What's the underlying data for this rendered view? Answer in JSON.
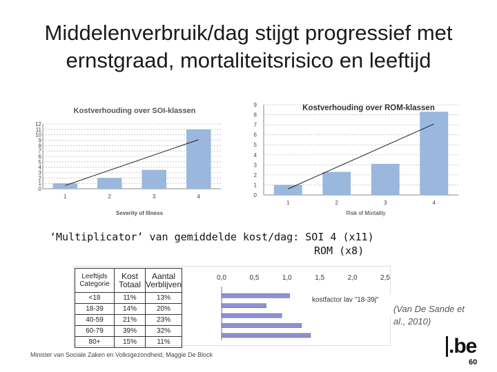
{
  "slide": {
    "title_line1": "Middelenverbruik/dag stijgt progressief met",
    "title_line2": "ernstgraad, mortaliteitsrisico en leeftijd",
    "multiplier_line1": "‘Multiplicator’  van gemiddelde kost/dag: SOI 4 (x11)",
    "multiplier_line2": "ROM (x8)",
    "citation_line1": "(Van De Sande et",
    "citation_line2": "al., 2010)",
    "footer": "Minister van Sociale Zaken en Volksgezondheid, Maggie De Block",
    "logo_text": ".be",
    "page_number": "60"
  },
  "age_table": {
    "headers": [
      [
        "Leeftijds",
        "Categorie"
      ],
      [
        "Kost",
        "Totaal"
      ],
      [
        "Aantal",
        "Verblijven"
      ]
    ],
    "rows": [
      [
        "<18",
        "11%",
        "13%"
      ],
      [
        "18-39",
        "14%",
        "20%"
      ],
      [
        "40-59",
        "21%",
        "23%"
      ],
      [
        "60-79",
        "39%",
        "32%"
      ],
      [
        "80+",
        "15%",
        "11%"
      ]
    ]
  },
  "chart_data": [
    {
      "type": "bar",
      "title": "Kostverhouding over SOI-klassen",
      "xlabel": "Severity of Illness",
      "ylabel": "",
      "categories": [
        "1",
        "2",
        "3",
        "4"
      ],
      "values": [
        1,
        2,
        3.5,
        11
      ],
      "trendline": true,
      "ylim": [
        0,
        12
      ],
      "yticks": [
        "0",
        "1",
        "2",
        "3",
        "4",
        "5",
        "6",
        "7",
        "8",
        "9",
        "10",
        "11",
        "12"
      ],
      "grid": true,
      "bar_color": "#9ab7dd"
    },
    {
      "type": "bar",
      "title": "Kostverhouding  over ROM-klassen",
      "xlabel": "Risk of Mortality",
      "ylabel": "",
      "categories": [
        "1",
        "2",
        "3",
        "4"
      ],
      "values": [
        1,
        2.3,
        3.1,
        8.3
      ],
      "trendline": true,
      "ylim": [
        0,
        9
      ],
      "yticks": [
        "0",
        "1",
        "2",
        "3",
        "4",
        "5",
        "6",
        "7",
        "8",
        "9"
      ],
      "grid": true,
      "bar_color": "#9ab7dd"
    },
    {
      "type": "bar",
      "orientation": "horizontal",
      "title": "",
      "xlim": [
        0,
        2.5
      ],
      "xticks": [
        "0,0",
        "0,5",
        "1,0",
        "1,5",
        "2,0",
        "2,5"
      ],
      "categories": [
        "<18",
        "18-39",
        "40-59",
        "60-79",
        "80+"
      ],
      "values": [
        1.04,
        0.68,
        0.92,
        1.22,
        1.36
      ],
      "annotation": "kostfactor lav \"18-39j\"",
      "bar_color": "#8f8fd8"
    }
  ]
}
